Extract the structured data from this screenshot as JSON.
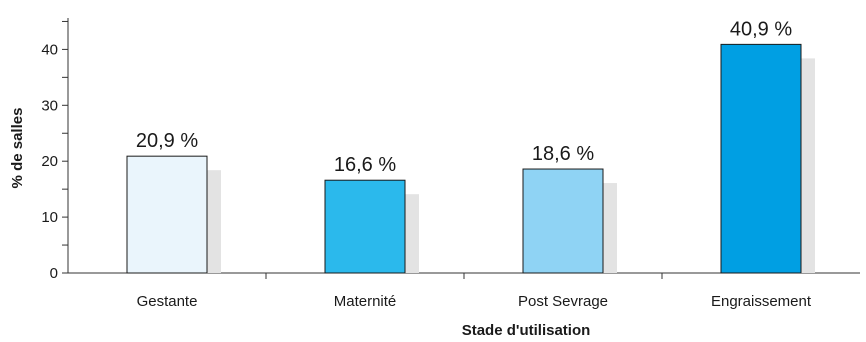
{
  "chart_data": {
    "type": "bar",
    "title": "",
    "xlabel": "Stade d'utilisation",
    "ylabel": "% de salles",
    "ylim": [
      0,
      45
    ],
    "yticks": [
      0,
      10,
      20,
      30,
      40
    ],
    "grid": false,
    "legend": "none",
    "categories": [
      "Gestante",
      "Maternité",
      "Post Sevrage",
      "Engraissement"
    ],
    "values": [
      20.9,
      16.6,
      18.6,
      40.9
    ],
    "value_labels": [
      "20,9 %",
      "16,6 %",
      "18,6 %",
      "40,9 %"
    ],
    "bar_colors": [
      "#eaf5fc",
      "#2bb9ec",
      "#8fd3f4",
      "#009fe3"
    ],
    "shadow_color": "#e3e3e3"
  }
}
